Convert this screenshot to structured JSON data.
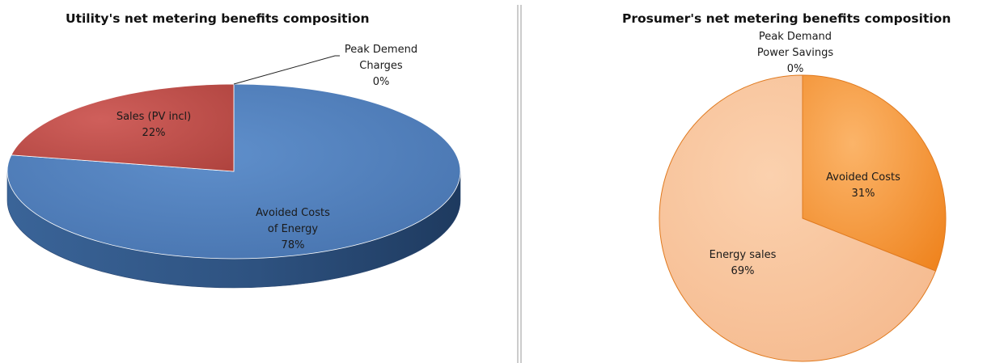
{
  "chart_data": [
    {
      "type": "pie",
      "style": "3d",
      "title": "Utility's net metering benefits composition",
      "slices": [
        {
          "label": "Avoided Costs of Energy",
          "label_lines": [
            "Avoided Costs",
            "of Energy"
          ],
          "percent_label": "78%",
          "value": 78,
          "color": "#4f81bd"
        },
        {
          "label": "Sales (PV incl)",
          "label_lines": [
            "Sales (PV incl)"
          ],
          "percent_label": "22%",
          "value": 22,
          "color": "#c0504d"
        },
        {
          "label": "Peak Demend Charges",
          "label_lines": [
            "Peak Demend",
            "Charges"
          ],
          "percent_label": "0%",
          "value": 0,
          "color": "#9bbb59"
        }
      ]
    },
    {
      "type": "pie",
      "style": "2d",
      "title": "Prosumer's net metering benefits composition",
      "slices": [
        {
          "label": "Avoided Costs",
          "label_lines": [
            "Avoided Costs"
          ],
          "percent_label": "31%",
          "value": 31,
          "color": "#f79646"
        },
        {
          "label": "Energy sales",
          "label_lines": [
            "Energy sales"
          ],
          "percent_label": "69%",
          "value": 69,
          "color": "#fac090"
        },
        {
          "label": "Peak Demand Power Savings",
          "label_lines": [
            "Peak Demand",
            "Power Savings"
          ],
          "percent_label": "0%",
          "value": 0,
          "color": "#e46c0a"
        }
      ]
    }
  ]
}
